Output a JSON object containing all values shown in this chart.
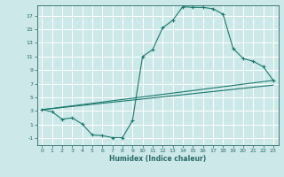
{
  "title": "",
  "xlabel": "Humidex (Indice chaleur)",
  "background_color": "#cce8e8",
  "grid_color": "#ffffff",
  "line_color": "#1a7a6e",
  "xlim": [
    -0.5,
    23.5
  ],
  "ylim": [
    -2.0,
    18.5
  ],
  "xticks": [
    0,
    1,
    2,
    3,
    4,
    5,
    6,
    7,
    8,
    9,
    10,
    11,
    12,
    13,
    14,
    15,
    16,
    17,
    18,
    19,
    20,
    21,
    22,
    23
  ],
  "yticks": [
    -1,
    1,
    3,
    5,
    7,
    9,
    11,
    13,
    15,
    17
  ],
  "curve1_x": [
    0,
    1,
    2,
    3,
    4,
    5,
    6,
    7,
    8,
    9,
    10,
    11,
    12,
    13,
    14,
    15,
    16,
    17,
    18,
    19,
    20,
    21,
    22,
    23
  ],
  "curve1_y": [
    3.2,
    2.9,
    1.8,
    2.0,
    1.1,
    -0.5,
    -0.6,
    -0.9,
    -0.9,
    1.6,
    11.0,
    12.0,
    15.2,
    16.3,
    18.3,
    18.2,
    18.2,
    18.0,
    17.2,
    12.2,
    10.7,
    10.3,
    9.5,
    7.5
  ],
  "curve2_x": [
    0,
    23
  ],
  "curve2_y": [
    3.2,
    7.5
  ],
  "curve3_x": [
    0,
    23
  ],
  "curve3_y": [
    3.2,
    6.8
  ],
  "tick_color": "#2a6a6a",
  "label_color": "#2a6a6a",
  "xlabel_fontsize": 5.5,
  "tick_fontsize": 4.5
}
